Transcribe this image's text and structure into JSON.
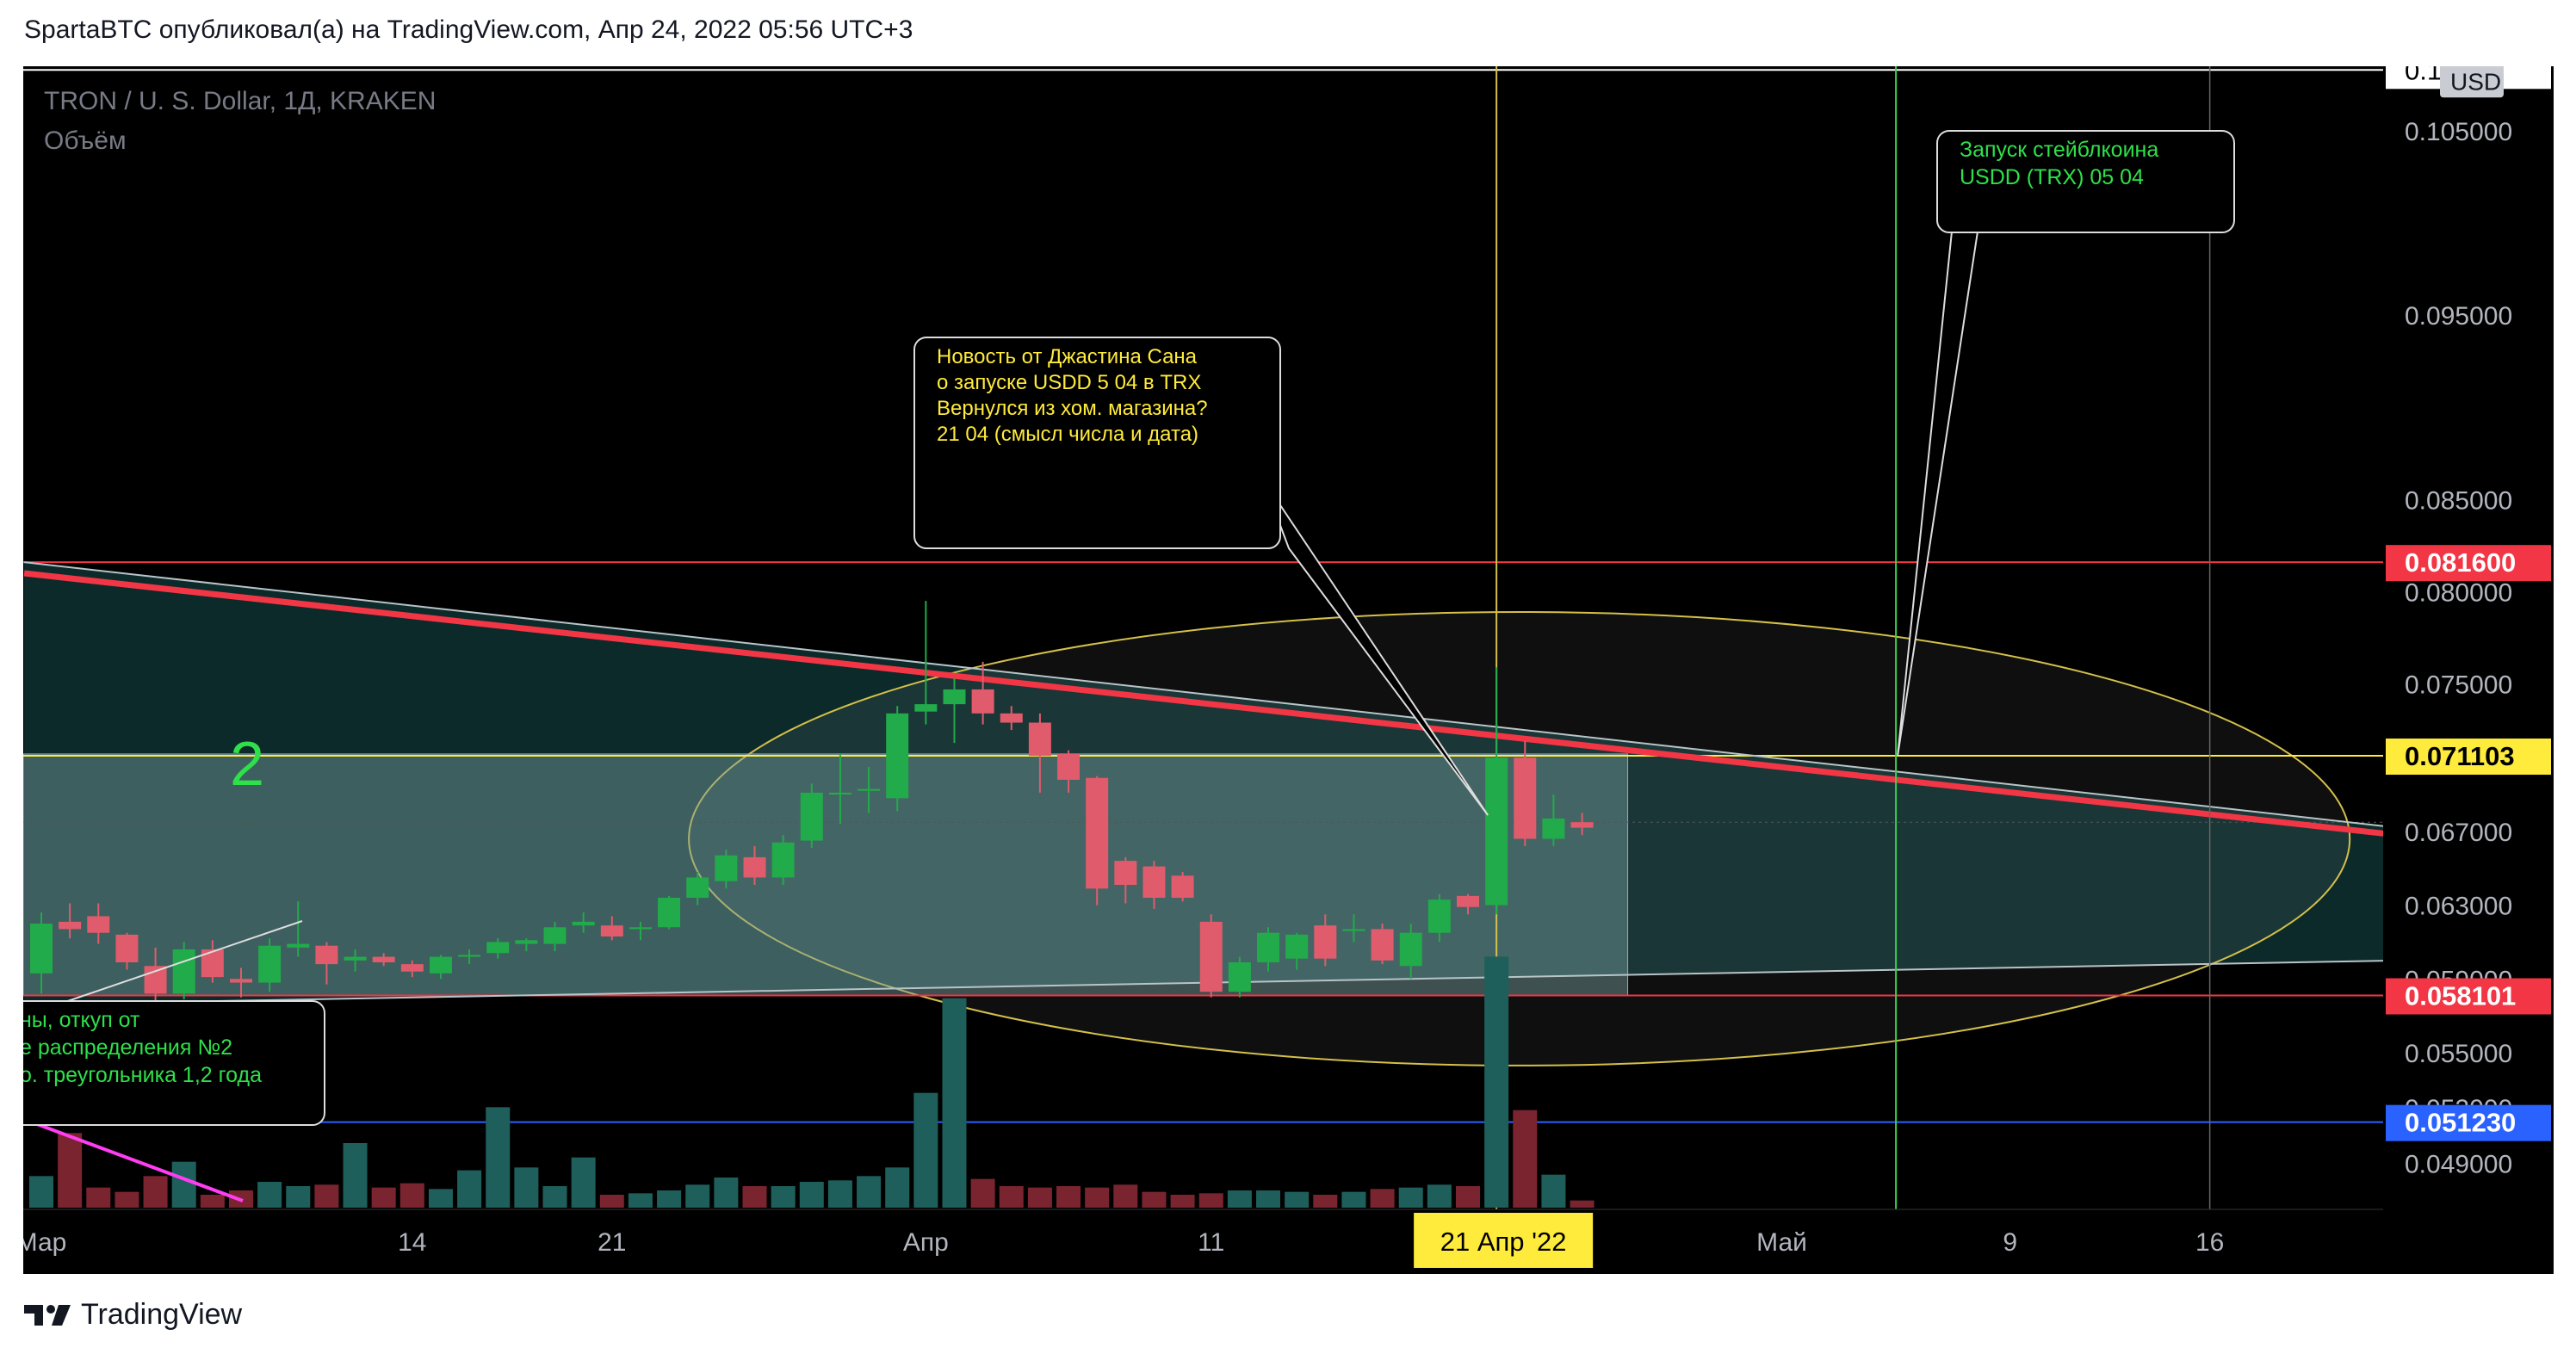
{
  "header": {
    "publisher": "SpartaBTC опубликовал(а) на TradingView.com, Апр 24, 2022 05:56 UTC+3"
  },
  "chart_header": {
    "symbol": "TRON / U. S. Dollar, 1Д, KRAKEN",
    "volume_label": "Объём",
    "currency_badge": "USD"
  },
  "footer": {
    "brand": "TradingView",
    "logo": "tradingview-logo-icon"
  },
  "chart_data": {
    "type": "candlestick",
    "title": "TRON / U. S. Dollar, 1Д, KRAKEN",
    "ylim": [
      0.0465,
      0.1085
    ],
    "y_ticks": [
      "0.049000",
      "0.052000",
      "0.055000",
      "0.059000",
      "0.063000",
      "0.067000",
      "0.075000",
      "0.080000",
      "0.085000",
      "0.095000",
      "0.105000"
    ],
    "x_ticks": [
      {
        "label": "Мар",
        "day": 0
      },
      {
        "label": "14",
        "day": 13
      },
      {
        "label": "21",
        "day": 20
      },
      {
        "label": "Апр",
        "day": 31
      },
      {
        "label": "11",
        "day": 41
      },
      {
        "label": "Май",
        "day": 61
      },
      {
        "label": "9",
        "day": 69
      },
      {
        "label": "16",
        "day": 76
      }
    ],
    "x_range": [
      -0.2,
      82.5
    ],
    "price_labels": [
      {
        "value": "0.081600",
        "price": 0.0816,
        "bg": "#f23645",
        "fg": "#ffffff"
      },
      {
        "value": "0.071103",
        "price": 0.071103,
        "bg": "#ffeb3b",
        "fg": "#000000"
      },
      {
        "value": "0.058101",
        "price": 0.058101,
        "bg": "#f23645",
        "fg": "#ffffff"
      },
      {
        "value": "0.051230",
        "price": 0.05123,
        "bg": "#2962ff",
        "fg": "#ffffff"
      }
    ],
    "top_label": "0.1",
    "crosshair_date": "21 Апр '22",
    "crosshair_day": 51,
    "green_vline_day": 65,
    "gray_vline_day": 76,
    "current_price": 0.0675,
    "candles": [
      {
        "d": 0,
        "o": 0.0593,
        "h": 0.0626,
        "l": 0.0582,
        "c": 0.062
      },
      {
        "d": 1,
        "o": 0.0621,
        "h": 0.0631,
        "l": 0.0612,
        "c": 0.0617
      },
      {
        "d": 2,
        "o": 0.0624,
        "h": 0.0631,
        "l": 0.0609,
        "c": 0.0615
      },
      {
        "d": 3,
        "o": 0.0614,
        "h": 0.0615,
        "l": 0.0595,
        "c": 0.0599
      },
      {
        "d": 4,
        "o": 0.0597,
        "h": 0.0607,
        "l": 0.0574,
        "c": 0.0582
      },
      {
        "d": 5,
        "o": 0.0582,
        "h": 0.061,
        "l": 0.0579,
        "c": 0.0606
      },
      {
        "d": 6,
        "o": 0.0606,
        "h": 0.0611,
        "l": 0.0588,
        "c": 0.0591
      },
      {
        "d": 7,
        "o": 0.059,
        "h": 0.0596,
        "l": 0.058,
        "c": 0.0588
      },
      {
        "d": 8,
        "o": 0.0588,
        "h": 0.0612,
        "l": 0.0583,
        "c": 0.0608
      },
      {
        "d": 9,
        "o": 0.0607,
        "h": 0.0632,
        "l": 0.0602,
        "c": 0.0609
      },
      {
        "d": 10,
        "o": 0.0608,
        "h": 0.061,
        "l": 0.0587,
        "c": 0.0598
      },
      {
        "d": 11,
        "o": 0.06,
        "h": 0.0606,
        "l": 0.0594,
        "c": 0.0602
      },
      {
        "d": 12,
        "o": 0.0602,
        "h": 0.0604,
        "l": 0.0597,
        "c": 0.0599
      },
      {
        "d": 13,
        "o": 0.0598,
        "h": 0.06,
        "l": 0.0591,
        "c": 0.0594
      },
      {
        "d": 14,
        "o": 0.0593,
        "h": 0.0603,
        "l": 0.059,
        "c": 0.0602
      },
      {
        "d": 15,
        "o": 0.0602,
        "h": 0.0606,
        "l": 0.0598,
        "c": 0.0603
      },
      {
        "d": 16,
        "o": 0.0604,
        "h": 0.0612,
        "l": 0.0601,
        "c": 0.061
      },
      {
        "d": 17,
        "o": 0.0609,
        "h": 0.0612,
        "l": 0.0605,
        "c": 0.0611
      },
      {
        "d": 18,
        "o": 0.0609,
        "h": 0.0621,
        "l": 0.0605,
        "c": 0.0618
      },
      {
        "d": 19,
        "o": 0.0619,
        "h": 0.0626,
        "l": 0.0615,
        "c": 0.0621
      },
      {
        "d": 20,
        "o": 0.0619,
        "h": 0.0624,
        "l": 0.0611,
        "c": 0.0613
      },
      {
        "d": 21,
        "o": 0.0617,
        "h": 0.0621,
        "l": 0.0611,
        "c": 0.0618
      },
      {
        "d": 22,
        "o": 0.0618,
        "h": 0.0635,
        "l": 0.0617,
        "c": 0.0634
      },
      {
        "d": 23,
        "o": 0.0634,
        "h": 0.0648,
        "l": 0.063,
        "c": 0.0645
      },
      {
        "d": 24,
        "o": 0.0643,
        "h": 0.066,
        "l": 0.0639,
        "c": 0.0657
      },
      {
        "d": 25,
        "o": 0.0656,
        "h": 0.0662,
        "l": 0.0641,
        "c": 0.0645
      },
      {
        "d": 26,
        "o": 0.0645,
        "h": 0.0668,
        "l": 0.0641,
        "c": 0.0664
      },
      {
        "d": 27,
        "o": 0.0665,
        "h": 0.0696,
        "l": 0.0661,
        "c": 0.0691
      },
      {
        "d": 28,
        "o": 0.069,
        "h": 0.0712,
        "l": 0.0674,
        "c": 0.0691
      },
      {
        "d": 29,
        "o": 0.0692,
        "h": 0.0705,
        "l": 0.068,
        "c": 0.0693
      },
      {
        "d": 30,
        "o": 0.0688,
        "h": 0.0738,
        "l": 0.0681,
        "c": 0.0734
      },
      {
        "d": 31,
        "o": 0.0735,
        "h": 0.0795,
        "l": 0.0728,
        "c": 0.0739
      },
      {
        "d": 32,
        "o": 0.0739,
        "h": 0.0753,
        "l": 0.0718,
        "c": 0.0747
      },
      {
        "d": 33,
        "o": 0.0747,
        "h": 0.0762,
        "l": 0.0728,
        "c": 0.0734
      },
      {
        "d": 34,
        "o": 0.0734,
        "h": 0.0738,
        "l": 0.0725,
        "c": 0.0729
      },
      {
        "d": 35,
        "o": 0.0729,
        "h": 0.0734,
        "l": 0.0691,
        "c": 0.0711
      },
      {
        "d": 36,
        "o": 0.0712,
        "h": 0.0714,
        "l": 0.0691,
        "c": 0.0698
      },
      {
        "d": 37,
        "o": 0.0699,
        "h": 0.07,
        "l": 0.063,
        "c": 0.0639
      },
      {
        "d": 38,
        "o": 0.0654,
        "h": 0.0656,
        "l": 0.0631,
        "c": 0.0641
      },
      {
        "d": 39,
        "o": 0.0651,
        "h": 0.0654,
        "l": 0.0628,
        "c": 0.0634
      },
      {
        "d": 40,
        "o": 0.0646,
        "h": 0.0648,
        "l": 0.0632,
        "c": 0.0634
      },
      {
        "d": 41,
        "o": 0.0621,
        "h": 0.0625,
        "l": 0.058,
        "c": 0.0583
      },
      {
        "d": 42,
        "o": 0.0583,
        "h": 0.0602,
        "l": 0.058,
        "c": 0.0599
      },
      {
        "d": 43,
        "o": 0.0599,
        "h": 0.0618,
        "l": 0.0594,
        "c": 0.0615
      },
      {
        "d": 44,
        "o": 0.0601,
        "h": 0.0615,
        "l": 0.0595,
        "c": 0.0614
      },
      {
        "d": 45,
        "o": 0.0619,
        "h": 0.0625,
        "l": 0.0597,
        "c": 0.0601
      },
      {
        "d": 46,
        "o": 0.0616,
        "h": 0.0625,
        "l": 0.061,
        "c": 0.0617
      },
      {
        "d": 47,
        "o": 0.0617,
        "h": 0.062,
        "l": 0.0598,
        "c": 0.06
      },
      {
        "d": 48,
        "o": 0.0597,
        "h": 0.062,
        "l": 0.059,
        "c": 0.0615
      },
      {
        "d": 49,
        "o": 0.0615,
        "h": 0.0636,
        "l": 0.061,
        "c": 0.0633
      },
      {
        "d": 50,
        "o": 0.0635,
        "h": 0.0636,
        "l": 0.0625,
        "c": 0.0629
      },
      {
        "d": 51,
        "o": 0.063,
        "h": 0.0759,
        "l": 0.0625,
        "c": 0.071
      },
      {
        "d": 52,
        "o": 0.071,
        "h": 0.0719,
        "l": 0.0662,
        "c": 0.0666
      },
      {
        "d": 53,
        "o": 0.0666,
        "h": 0.069,
        "l": 0.0662,
        "c": 0.0677
      },
      {
        "d": 54,
        "o": 0.0675,
        "h": 0.068,
        "l": 0.0668,
        "c": 0.0672
      }
    ],
    "volume_max": 1000,
    "volume": [
      22,
      52,
      14,
      11,
      22,
      32,
      9,
      12,
      18,
      15,
      16,
      45,
      14,
      17,
      13,
      26,
      70,
      28,
      15,
      35,
      9,
      10,
      12,
      16,
      21,
      15,
      15,
      18,
      19,
      22,
      28,
      80,
      146,
      20,
      15,
      14,
      15,
      14,
      16,
      11,
      9,
      10,
      12,
      12,
      11,
      9,
      11,
      13,
      14,
      16,
      15,
      175,
      68,
      23,
      5
    ]
  },
  "annotations": {
    "big_number": "2",
    "left_callout": [
      "ны, откуп от",
      "е распределения №2",
      "о. треугольника 1,2 года"
    ],
    "center_callout": [
      "Новость от Джастина Сана",
      "о запуске USDD 5 04 в TRX",
      "Вернулся из хом. магазина?",
      "21 04 (смысл числа и дата)"
    ],
    "right_callout": [
      "Запуск стейблкоина",
      "USDD (TRX) 05 04"
    ]
  }
}
